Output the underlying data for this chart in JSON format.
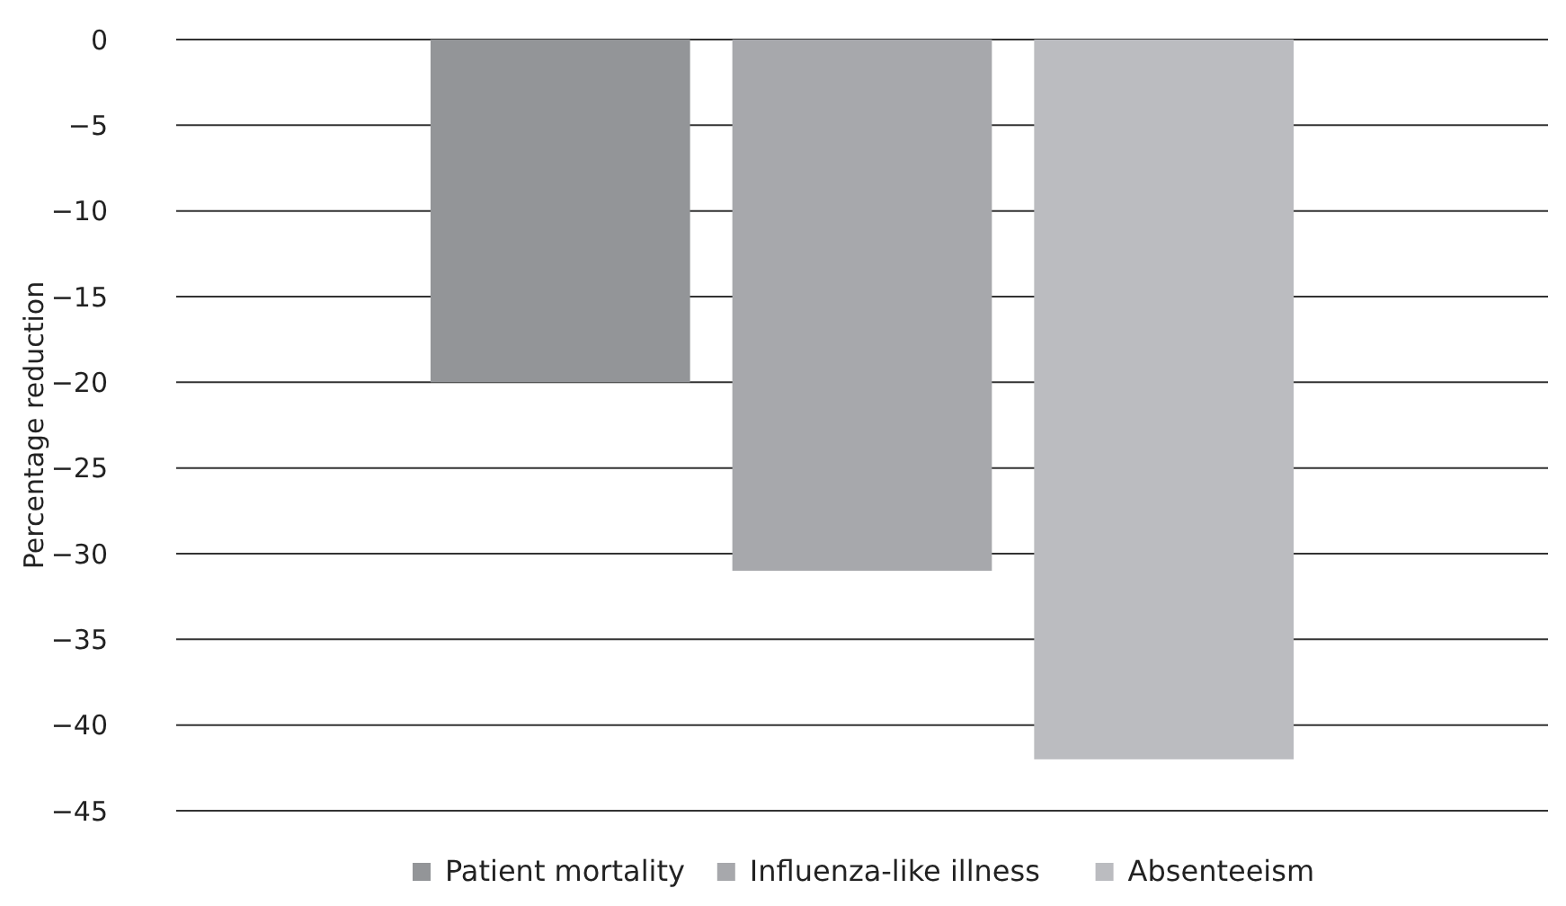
{
  "chart_data": {
    "type": "bar",
    "ylabel": "Percentage reduction",
    "categories": [
      null
    ],
    "series": [
      {
        "name": "Patient mortality",
        "color": "#939598",
        "values": [
          -20
        ]
      },
      {
        "name": "Influenza-like illness",
        "color": "#a7a8ac",
        "values": [
          -31
        ]
      },
      {
        "name": "Absenteeism",
        "color": "#bbbcc0",
        "values": [
          -42
        ]
      }
    ],
    "ylim": [
      -45,
      0
    ],
    "yticks": [
      0,
      {
        "value": -5,
        "label": "−5"
      },
      {
        "value": -10,
        "label": "−10"
      },
      {
        "value": -15,
        "label": "−15"
      },
      {
        "value": -20,
        "label": "−20"
      },
      {
        "value": -25,
        "label": "−25"
      },
      {
        "value": -30,
        "label": "−30"
      },
      {
        "value": -35,
        "label": "−35"
      },
      {
        "value": -40,
        "label": "−40"
      },
      {
        "value": -45,
        "label": "−45"
      }
    ],
    "grid": "y",
    "legend": "bottom"
  }
}
